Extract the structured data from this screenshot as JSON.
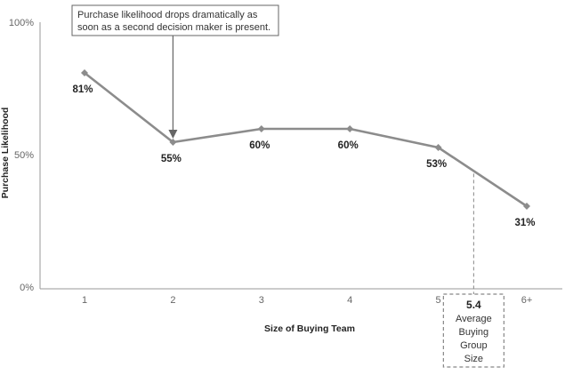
{
  "chart_data": {
    "type": "line",
    "categories": [
      "1",
      "2",
      "3",
      "4",
      "5",
      "6+"
    ],
    "values": [
      81,
      55,
      60,
      60,
      53,
      31
    ],
    "data_labels": [
      "81%",
      "55%",
      "60%",
      "60%",
      "53%",
      "31%"
    ],
    "xlabel": "Size of Buying Team",
    "ylabel": "Purchase Likelihood",
    "ylim": [
      0,
      100
    ],
    "yticks": [
      0,
      50,
      100
    ],
    "ytick_labels": [
      "0%",
      "50%",
      "100%"
    ],
    "grid": false,
    "line_color": "#8c8c8c",
    "annotation": {
      "lines": [
        "Purchase likelihood drops dramatically as",
        "soon as a second decision maker is present."
      ],
      "target_category": "2"
    },
    "average_marker": {
      "x": 5.4,
      "value_label": "5.4",
      "lines": [
        "Average",
        "Buying",
        "Group",
        "Size"
      ]
    }
  }
}
